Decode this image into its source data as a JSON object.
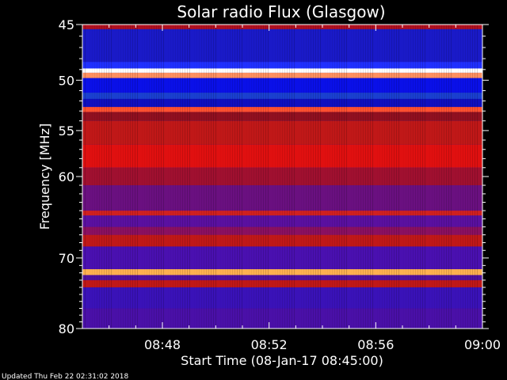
{
  "chart_data": {
    "type": "heatmap",
    "title": "Solar radio Flux (Glasgow)",
    "xlabel": "Start Time (08-Jan-17 08:45:00)",
    "ylabel": "Frequency [MHz]",
    "footer": "Updated Thu Feb 22 02:31:02 2018",
    "x_ticks": [
      "08:48",
      "08:52",
      "08:56",
      "09:00"
    ],
    "x_tick_minutes": [
      3,
      7,
      11,
      15
    ],
    "xlim_minutes": [
      0,
      15
    ],
    "y_ticks": [
      45,
      50,
      55,
      60,
      70,
      80
    ],
    "ylim": [
      45,
      80
    ],
    "y_scale": "log",
    "colors": {
      "background": "#000000",
      "low": "#2a1aa8",
      "mid": "#c01818",
      "high": "#ffd9a0"
    },
    "bands": [
      {
        "from": 45.0,
        "to": 45.4,
        "color": "#b01020"
      },
      {
        "from": 45.4,
        "to": 48.3,
        "color": "#1a1ac8"
      },
      {
        "from": 48.3,
        "to": 48.9,
        "color": "#2030ff"
      },
      {
        "from": 48.9,
        "to": 49.3,
        "color": "#ffffff"
      },
      {
        "from": 49.3,
        "to": 49.8,
        "color": "#ff9060"
      },
      {
        "from": 49.8,
        "to": 51.2,
        "color": "#0a10e8"
      },
      {
        "from": 51.2,
        "to": 51.8,
        "color": "#1a40d0"
      },
      {
        "from": 51.8,
        "to": 52.6,
        "color": "#1010c0"
      },
      {
        "from": 52.6,
        "to": 53.1,
        "color": "#ff5030"
      },
      {
        "from": 53.1,
        "to": 54.0,
        "color": "#901020"
      },
      {
        "from": 54.0,
        "to": 56.5,
        "color": "#c01818"
      },
      {
        "from": 56.5,
        "to": 59.0,
        "color": "#e01010"
      },
      {
        "from": 59.0,
        "to": 61.0,
        "color": "#a01030"
      },
      {
        "from": 61.0,
        "to": 64.0,
        "color": "#6a1080"
      },
      {
        "from": 64.0,
        "to": 64.6,
        "color": "#d02020"
      },
      {
        "from": 64.6,
        "to": 66.0,
        "color": "#5a10a0"
      },
      {
        "from": 66.0,
        "to": 67.0,
        "color": "#8a1060"
      },
      {
        "from": 67.0,
        "to": 68.5,
        "color": "#c01818"
      },
      {
        "from": 68.5,
        "to": 71.5,
        "color": "#4a10b0"
      },
      {
        "from": 71.5,
        "to": 72.3,
        "color": "#ffb050"
      },
      {
        "from": 72.3,
        "to": 73.0,
        "color": "#5010a0"
      },
      {
        "from": 73.0,
        "to": 74.0,
        "color": "#c01818"
      },
      {
        "from": 74.0,
        "to": 77.0,
        "color": "#3a12b8"
      },
      {
        "from": 77.0,
        "to": 80.0,
        "color": "#4a10a8"
      }
    ]
  }
}
